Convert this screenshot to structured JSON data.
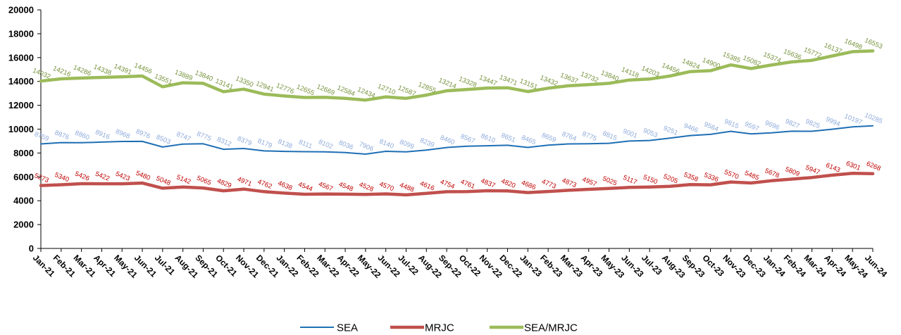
{
  "chart_data": {
    "type": "line",
    "title": "",
    "xlabel": "",
    "ylabel": "",
    "ylim": [
      0,
      20000
    ],
    "yticks": [
      0,
      2000,
      4000,
      6000,
      8000,
      10000,
      12000,
      14000,
      16000,
      18000,
      20000
    ],
    "grid": false,
    "legend_position": "bottom",
    "categories": [
      "Jan-21",
      "Feb-21",
      "Mar-21",
      "Apr-21",
      "May-21",
      "Jun-21",
      "Jul-21",
      "Aug-21",
      "Sep-21",
      "Oct-21",
      "Nov-21",
      "Dec-21",
      "Jan-22",
      "Feb-22",
      "Mar-22",
      "Apr-22",
      "May-22",
      "Jun-22",
      "Jul-22",
      "Aug-22",
      "Sep-22",
      "Oct-22",
      "Nov-22",
      "Dec-22",
      "Jan-23",
      "Feb-23",
      "Mar-23",
      "Apr-23",
      "May-23",
      "Jun-23",
      "Jul-23",
      "Aug-23",
      "Sep-23",
      "Oct-23",
      "Nov-23",
      "Dec-23",
      "Jan-24",
      "Feb-24",
      "Mar-24",
      "Apr-24",
      "May-24",
      "Jun-24"
    ],
    "series": [
      {
        "name": "SEA",
        "color": "#1f6fb4",
        "label_color": "#8eaadb",
        "width": 2,
        "values": [
          8759,
          8876,
          8860,
          8916,
          8968,
          8976,
          8503,
          8747,
          8775,
          8312,
          8379,
          8179,
          8138,
          8111,
          8102,
          8036,
          7906,
          8140,
          8099,
          8239,
          8460,
          8567,
          8610,
          8651,
          8465,
          8659,
          8764,
          8775,
          8815,
          9001,
          9053,
          9251,
          9466,
          9564,
          9815,
          9597,
          9696,
          9827,
          9825,
          9994,
          10197,
          10285
        ]
      },
      {
        "name": "MRJC",
        "color": "#c0504d",
        "label_color": "#c00000",
        "width": 4.5,
        "values": [
          5273,
          5340,
          5426,
          5422,
          5423,
          5480,
          5048,
          5142,
          5065,
          4829,
          4971,
          4762,
          4638,
          4544,
          4567,
          4548,
          4528,
          4570,
          4488,
          4616,
          4754,
          4761,
          4837,
          4820,
          4686,
          4773,
          4873,
          4957,
          5025,
          5117,
          5150,
          5205,
          5358,
          5336,
          5570,
          5485,
          5678,
          5809,
          5947,
          6143,
          6301,
          6268
        ]
      },
      {
        "name": "SEA/MRJC",
        "color": "#9bbb59",
        "label_color": "#76923c",
        "width": 4.5,
        "values": [
          14032,
          14216,
          14286,
          14338,
          14391,
          14456,
          13551,
          13889,
          13840,
          13141,
          13350,
          12941,
          12776,
          12655,
          12669,
          12584,
          12434,
          12710,
          12587,
          12855,
          13214,
          13328,
          13447,
          13471,
          13151,
          13432,
          13637,
          13732,
          13840,
          14118,
          14203,
          14456,
          14824,
          14900,
          15385,
          15082,
          15374,
          15636,
          15772,
          16137,
          16498,
          16553
        ]
      }
    ]
  }
}
